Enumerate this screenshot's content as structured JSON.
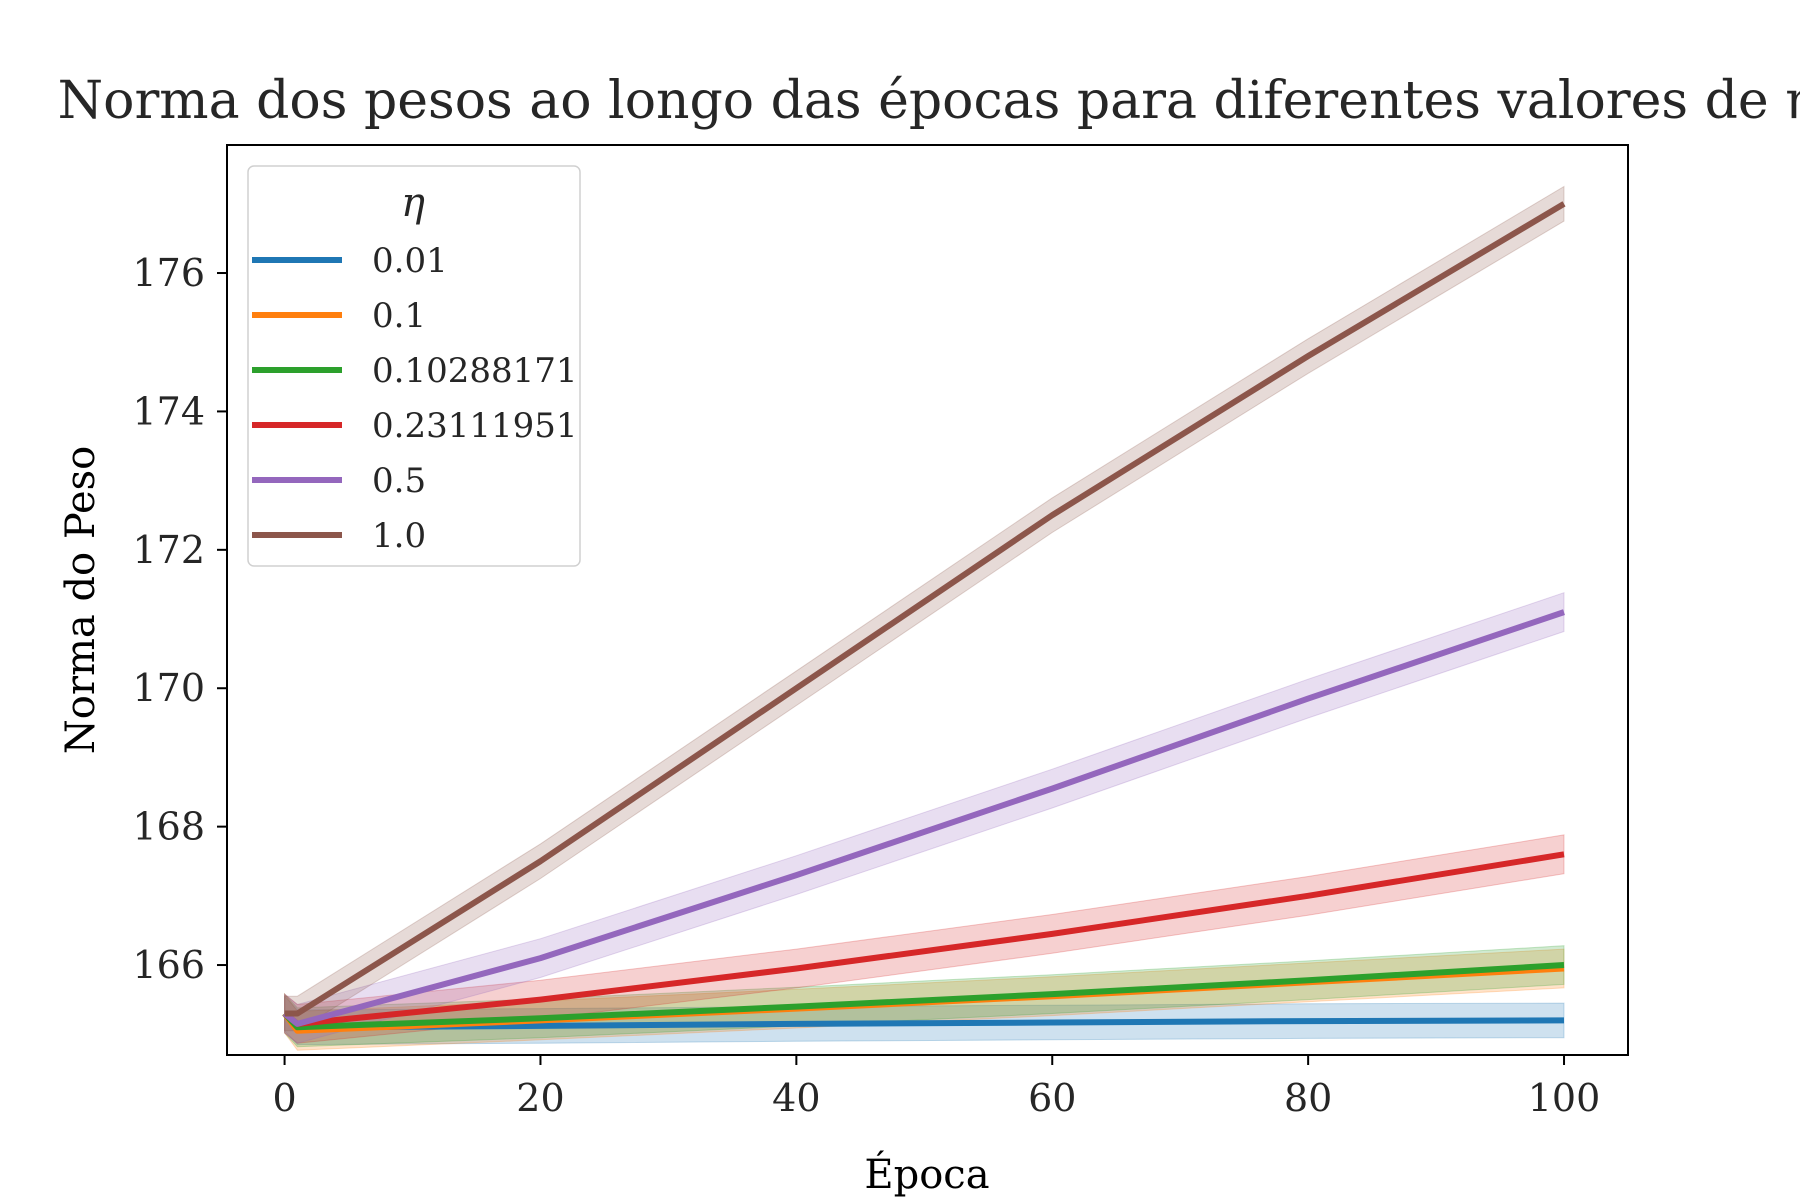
{
  "chart_data": {
    "type": "line",
    "title": "Norma dos pesos ao longo das épocas para diferentes valores de η",
    "xlabel": "Época",
    "ylabel": "Norma do Peso",
    "xlim": [
      -4.5,
      105
    ],
    "ylim": [
      164.7,
      177.85
    ],
    "xticks": [
      0,
      20,
      40,
      60,
      80,
      100
    ],
    "yticks": [
      166,
      168,
      170,
      172,
      174,
      176
    ],
    "grid": false,
    "legend": {
      "title": "η",
      "placement": "top-left"
    },
    "series": [
      {
        "name": "0.01",
        "color": "#1f77b4",
        "x": [
          0,
          1,
          20,
          40,
          60,
          80,
          100
        ],
        "values": [
          165.3,
          165.1,
          165.12,
          165.15,
          165.17,
          165.19,
          165.2
        ],
        "band": 0.25
      },
      {
        "name": "0.1",
        "color": "#ff7f0e",
        "x": [
          0,
          1,
          20,
          40,
          60,
          80,
          100
        ],
        "values": [
          165.3,
          165.05,
          165.2,
          165.37,
          165.55,
          165.75,
          165.95
        ],
        "band": 0.28
      },
      {
        "name": "0.10288171",
        "color": "#2ca02c",
        "x": [
          0,
          1,
          20,
          40,
          60,
          80,
          100
        ],
        "values": [
          165.3,
          165.1,
          165.23,
          165.4,
          165.58,
          165.78,
          166.0
        ],
        "band": 0.28
      },
      {
        "name": "0.23111951",
        "color": "#d62728",
        "x": [
          0,
          1,
          20,
          40,
          60,
          80,
          100
        ],
        "values": [
          165.3,
          165.15,
          165.5,
          165.95,
          166.45,
          167.0,
          167.6
        ],
        "band": 0.28
      },
      {
        "name": "0.5",
        "color": "#9467bd",
        "x": [
          0,
          1,
          20,
          40,
          60,
          80,
          100
        ],
        "values": [
          165.3,
          165.15,
          166.1,
          167.3,
          168.55,
          169.85,
          171.1
        ],
        "band": 0.28
      },
      {
        "name": "1.0",
        "color": "#8c564b",
        "x": [
          0,
          1,
          20,
          40,
          60,
          80,
          100
        ],
        "values": [
          165.3,
          165.3,
          167.5,
          170.0,
          172.5,
          174.8,
          177.0
        ],
        "band": 0.25
      }
    ]
  }
}
